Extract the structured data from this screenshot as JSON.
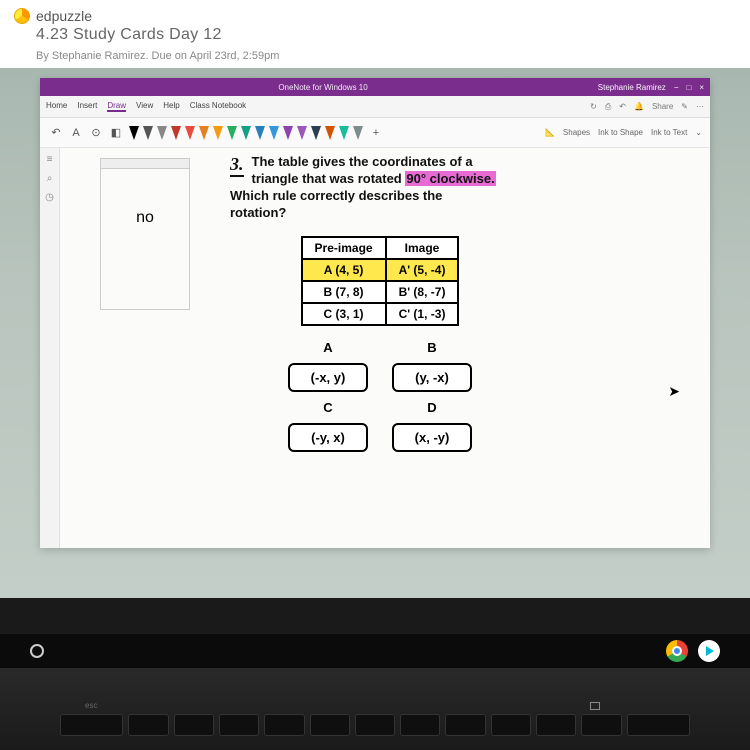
{
  "header": {
    "brand": "edpuzzle",
    "title": "4.23 Study Cards Day 12",
    "byline": "By Stephanie Ramirez. Due on April 23rd, 2:59pm"
  },
  "window": {
    "title_center": "OneNote for Windows 10",
    "title_right_name": "Stephanie Ramirez",
    "share_label": "Share",
    "ribbon_tabs": [
      "Home",
      "Insert",
      "Draw",
      "View",
      "Help",
      "Class Notebook"
    ],
    "ribbon_right": [
      "Shapes",
      "Ink to Shape",
      "Ink to Text"
    ]
  },
  "pens": {
    "colors": [
      "#000000",
      "#555555",
      "#888888",
      "#c0392b",
      "#e74c3c",
      "#e67e22",
      "#f39c12",
      "#27ae60",
      "#16a085",
      "#2980b9",
      "#3498db",
      "#8e44ad",
      "#9b59b6",
      "#2c3e50",
      "#d35400",
      "#1abc9c",
      "#7f8c8d"
    ]
  },
  "note": {
    "side_text": "no"
  },
  "question": {
    "number": "3.",
    "line1": "The table gives the coordinates of a",
    "line2a": "triangle that was rotated ",
    "line2b_hl": "90° clockwise.",
    "line3": "Which rule correctly describes the",
    "line4": "rotation?"
  },
  "table": {
    "headers": [
      "Pre-image",
      "Image"
    ],
    "rows": [
      {
        "pre": "A (4, 5)",
        "img": "A' (5, -4)",
        "highlight": true
      },
      {
        "pre": "B (7, 8)",
        "img": "B' (8, -7)",
        "highlight": false
      },
      {
        "pre": "C (3, 1)",
        "img": "C' (1, -3)",
        "highlight": false
      }
    ]
  },
  "answers": {
    "A": "(-x, y)",
    "B": "(y, -x)",
    "C": "(-y, x)",
    "D": "(x, -y)"
  },
  "colors": {
    "purple": "#7b2d8e",
    "highlight_pink": "#e86bd4",
    "highlight_yellow": "#ffe84d",
    "paper": "#fbfbf9"
  }
}
